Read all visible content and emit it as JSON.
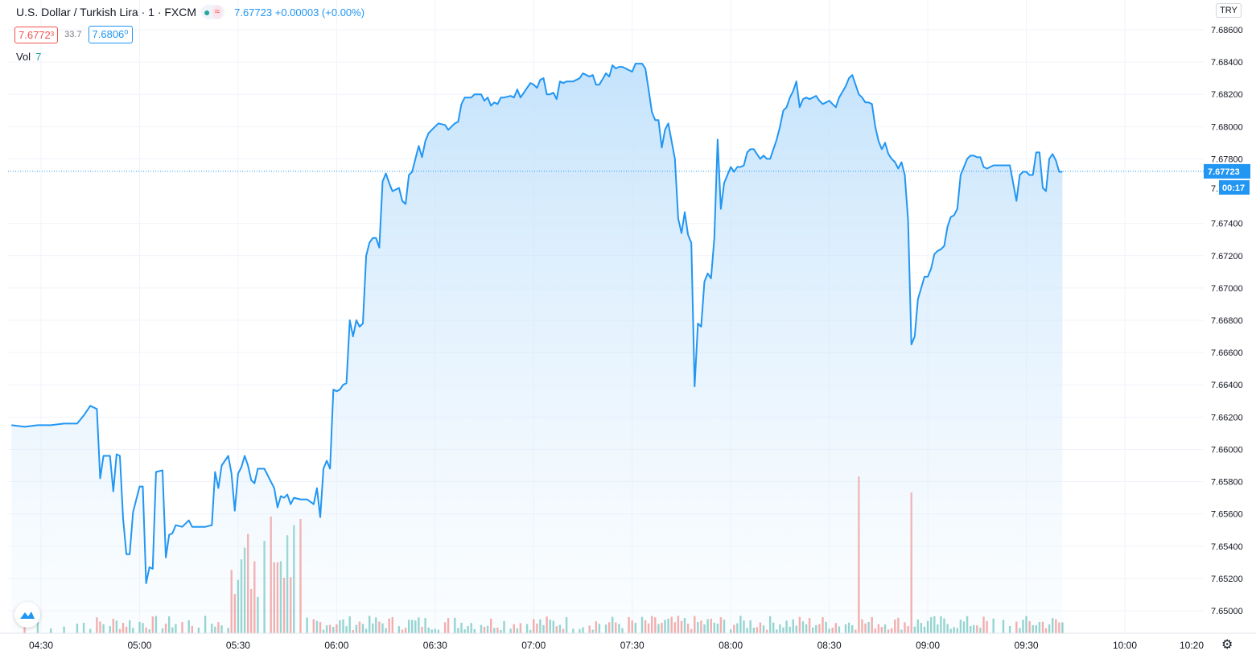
{
  "legend": {
    "title": "U.S. Dollar / Turkish Lira · 1 · FXCM",
    "last": "7.67723",
    "change": "+0.00003 (+0.00%)"
  },
  "quotes": {
    "bid": "7.6772³",
    "spread": "33.7",
    "ask": "7.6806⁰"
  },
  "volume": {
    "label": "Vol",
    "value": "7"
  },
  "currency_button": "TRY",
  "price_axis": {
    "ticks": [
      "7.68600",
      "7.68400",
      "7.68200",
      "7.68000",
      "7.67800",
      "7.67400",
      "7.67200",
      "7.67000",
      "7.66800",
      "7.66600",
      "7.66400",
      "7.66200",
      "7.66000",
      "7.65800",
      "7.65600",
      "7.65400",
      "7.65200",
      "7.65000"
    ],
    "last_label": "7.67723",
    "countdown": "00:17",
    "partial_label": "7."
  },
  "time_axis": {
    "ticks": [
      "04:30",
      "05:00",
      "05:30",
      "06:00",
      "06:30",
      "07:00",
      "07:30",
      "08:00",
      "08:30",
      "09:00",
      "09:30",
      "10:00",
      "10:20"
    ]
  },
  "colors": {
    "line": "#2196f3",
    "area_top": "#bbdefb",
    "vol_up": "#26a69a",
    "vol_down": "#ef5350",
    "grid": "#f0f3fa"
  },
  "chart_data": {
    "type": "area",
    "symbol": "USDTRY",
    "y_unit": "TRY",
    "ylim": [
      7.6485,
      7.687
    ],
    "x_range": [
      "04:21",
      "10:20"
    ],
    "series": [
      {
        "points": [
          [
            "04:21",
            7.6615
          ],
          [
            "04:25",
            7.6614
          ],
          [
            "04:29",
            7.6615
          ],
          [
            "04:33",
            7.6615
          ],
          [
            "04:37",
            7.6616
          ],
          [
            "04:41",
            7.6616
          ],
          [
            "04:43",
            7.6621
          ],
          [
            "04:45",
            7.6627
          ],
          [
            "04:47",
            7.6625
          ],
          [
            "04:48",
            7.6582
          ],
          [
            "04:49",
            7.6596
          ],
          [
            "04:51",
            7.6596
          ],
          [
            "04:52",
            7.6574
          ],
          [
            "04:53",
            7.6597
          ],
          [
            "04:54",
            7.6596
          ],
          [
            "04:55",
            7.6557
          ],
          [
            "04:56",
            7.6535
          ],
          [
            "04:57",
            7.6535
          ],
          [
            "04:58",
            7.6561
          ],
          [
            "05:00",
            7.6577
          ],
          [
            "05:01",
            7.6577
          ],
          [
            "05:02",
            7.6517
          ],
          [
            "05:03",
            7.6527
          ],
          [
            "05:04",
            7.6526
          ],
          [
            "05:05",
            7.6586
          ],
          [
            "05:07",
            7.6587
          ],
          [
            "05:08",
            7.6533
          ],
          [
            "05:09",
            7.6547
          ],
          [
            "05:10",
            7.6548
          ],
          [
            "05:11",
            7.6553
          ],
          [
            "05:13",
            7.6552
          ],
          [
            "05:15",
            7.6556
          ],
          [
            "05:16",
            7.6552
          ],
          [
            "05:18",
            7.6552
          ],
          [
            "05:20",
            7.6552
          ],
          [
            "05:22",
            7.6553
          ],
          [
            "05:23",
            7.6586
          ],
          [
            "05:24",
            7.6576
          ],
          [
            "05:25",
            7.659
          ],
          [
            "05:27",
            7.6596
          ],
          [
            "05:28",
            7.6585
          ],
          [
            "05:29",
            7.6562
          ],
          [
            "05:30",
            7.6585
          ],
          [
            "05:31",
            7.6589
          ],
          [
            "05:32",
            7.6596
          ],
          [
            "05:33",
            7.659
          ],
          [
            "05:34",
            7.6581
          ],
          [
            "05:35",
            7.6579
          ],
          [
            "05:36",
            7.6588
          ],
          [
            "05:38",
            7.6588
          ],
          [
            "05:40",
            7.658
          ],
          [
            "05:41",
            7.6576
          ],
          [
            "05:42",
            7.6564
          ],
          [
            "05:43",
            7.6571
          ],
          [
            "05:44",
            7.657
          ],
          [
            "05:45",
            7.6572
          ],
          [
            "05:46",
            7.6566
          ],
          [
            "05:47",
            7.657
          ],
          [
            "05:49",
            7.6569
          ],
          [
            "05:51",
            7.6569
          ],
          [
            "05:53",
            7.6566
          ],
          [
            "05:54",
            7.6576
          ],
          [
            "05:55",
            7.6558
          ],
          [
            "05:56",
            7.6588
          ],
          [
            "05:57",
            7.6593
          ],
          [
            "05:58",
            7.6588
          ],
          [
            "05:59",
            7.6637
          ],
          [
            "06:00",
            7.6636
          ],
          [
            "06:01",
            7.6637
          ],
          [
            "06:02",
            7.664
          ],
          [
            "06:03",
            7.6641
          ],
          [
            "06:04",
            7.668
          ],
          [
            "06:05",
            7.667
          ],
          [
            "06:06",
            7.668
          ],
          [
            "06:07",
            7.6676
          ],
          [
            "06:08",
            7.6678
          ],
          [
            "06:09",
            7.672
          ],
          [
            "06:10",
            7.6728
          ],
          [
            "06:11",
            7.6731
          ],
          [
            "06:12",
            7.6731
          ],
          [
            "06:13",
            7.6725
          ],
          [
            "06:14",
            7.6766
          ],
          [
            "06:15",
            7.6771
          ],
          [
            "06:16",
            7.6765
          ],
          [
            "06:17",
            7.676
          ],
          [
            "06:19",
            7.6762
          ],
          [
            "06:20",
            7.6754
          ],
          [
            "06:21",
            7.6752
          ],
          [
            "06:22",
            7.677
          ],
          [
            "06:23",
            7.6772
          ],
          [
            "06:24",
            7.678
          ],
          [
            "06:25",
            7.6788
          ],
          [
            "06:26",
            7.6781
          ],
          [
            "06:27",
            7.6791
          ],
          [
            "06:28",
            7.6796
          ],
          [
            "06:29",
            7.6798
          ],
          [
            "06:30",
            7.68
          ],
          [
            "06:31",
            7.6802
          ],
          [
            "06:33",
            7.6801
          ],
          [
            "06:34",
            7.6798
          ],
          [
            "06:36",
            7.6802
          ],
          [
            "06:37",
            7.6803
          ],
          [
            "06:38",
            7.6814
          ],
          [
            "06:39",
            7.6818
          ],
          [
            "06:40",
            7.6818
          ],
          [
            "06:41",
            7.6818
          ],
          [
            "06:42",
            7.682
          ],
          [
            "06:44",
            7.682
          ],
          [
            "06:45",
            7.6816
          ],
          [
            "06:46",
            7.6818
          ],
          [
            "06:47",
            7.6813
          ],
          [
            "06:48",
            7.6815
          ],
          [
            "06:49",
            7.6814
          ],
          [
            "06:50",
            7.6818
          ],
          [
            "06:51",
            7.6818
          ],
          [
            "06:53",
            7.6819
          ],
          [
            "06:54",
            7.6818
          ],
          [
            "06:55",
            7.6823
          ],
          [
            "06:56",
            7.6818
          ],
          [
            "06:58",
            7.6824
          ],
          [
            "06:59",
            7.6827
          ],
          [
            "07:00",
            7.6826
          ],
          [
            "07:01",
            7.6824
          ],
          [
            "07:02",
            7.6829
          ],
          [
            "07:03",
            7.683
          ],
          [
            "07:04",
            7.682
          ],
          [
            "07:05",
            7.682
          ],
          [
            "07:06",
            7.6821
          ],
          [
            "07:07",
            7.6817
          ],
          [
            "07:08",
            7.6828
          ],
          [
            "07:09",
            7.6827
          ],
          [
            "07:10",
            7.6828
          ],
          [
            "07:12",
            7.6828
          ],
          [
            "07:14",
            7.683
          ],
          [
            "07:15",
            7.6833
          ],
          [
            "07:17",
            7.6831
          ],
          [
            "07:18",
            7.6832
          ],
          [
            "07:19",
            7.6826
          ],
          [
            "07:20",
            7.6826
          ],
          [
            "07:22",
            7.6833
          ],
          [
            "07:23",
            7.6831
          ],
          [
            "07:24",
            7.6838
          ],
          [
            "07:25",
            7.6836
          ],
          [
            "07:26",
            7.6837
          ],
          [
            "07:27",
            7.6837
          ],
          [
            "07:29",
            7.6835
          ],
          [
            "07:30",
            7.6834
          ],
          [
            "07:31",
            7.6839
          ],
          [
            "07:33",
            7.6839
          ],
          [
            "07:34",
            7.6836
          ],
          [
            "07:35",
            7.6823
          ],
          [
            "07:36",
            7.6809
          ],
          [
            "07:37",
            7.6804
          ],
          [
            "07:38",
            7.6804
          ],
          [
            "07:39",
            7.6787
          ],
          [
            "07:40",
            7.6798
          ],
          [
            "07:41",
            7.6802
          ],
          [
            "07:42",
            7.6791
          ],
          [
            "07:43",
            7.678
          ],
          [
            "07:44",
            7.6743
          ],
          [
            "07:45",
            7.6734
          ],
          [
            "07:46",
            7.6747
          ],
          [
            "07:47",
            7.6733
          ],
          [
            "07:48",
            7.6728
          ],
          [
            "07:49",
            7.6639
          ],
          [
            "07:50",
            7.6678
          ],
          [
            "07:51",
            7.6676
          ],
          [
            "07:52",
            7.6704
          ],
          [
            "07:53",
            7.6709
          ],
          [
            "07:54",
            7.6706
          ],
          [
            "07:55",
            7.6731
          ],
          [
            "07:56",
            7.6792
          ],
          [
            "07:57",
            7.6749
          ],
          [
            "07:58",
            7.6765
          ],
          [
            "08:00",
            7.6775
          ],
          [
            "08:01",
            7.6772
          ],
          [
            "08:02",
            7.6775
          ],
          [
            "08:03",
            7.6775
          ],
          [
            "08:04",
            7.6776
          ],
          [
            "08:05",
            7.6784
          ],
          [
            "08:06",
            7.6786
          ],
          [
            "08:07",
            7.6786
          ],
          [
            "08:08",
            7.6783
          ],
          [
            "08:09",
            7.678
          ],
          [
            "08:10",
            7.6782
          ],
          [
            "08:11",
            7.678
          ],
          [
            "08:12",
            7.678
          ],
          [
            "08:13",
            7.6786
          ],
          [
            "08:14",
            7.6792
          ],
          [
            "08:15",
            7.68
          ],
          [
            "08:16",
            7.681
          ],
          [
            "08:17",
            7.6812
          ],
          [
            "08:18",
            7.6818
          ],
          [
            "08:19",
            7.6822
          ],
          [
            "08:20",
            7.6828
          ],
          [
            "08:21",
            7.6812
          ],
          [
            "08:22",
            7.6817
          ],
          [
            "08:23",
            7.6818
          ],
          [
            "08:24",
            7.6817
          ],
          [
            "08:25",
            7.6818
          ],
          [
            "08:26",
            7.6819
          ],
          [
            "08:27",
            7.6816
          ],
          [
            "08:28",
            7.6814
          ],
          [
            "08:29",
            7.6815
          ],
          [
            "08:30",
            7.6816
          ],
          [
            "08:31",
            7.6814
          ],
          [
            "08:32",
            7.6812
          ],
          [
            "08:33",
            7.6818
          ],
          [
            "08:35",
            7.6825
          ],
          [
            "08:36",
            7.683
          ],
          [
            "08:37",
            7.6832
          ],
          [
            "08:38",
            7.6826
          ],
          [
            "08:39",
            7.682
          ],
          [
            "08:40",
            7.6818
          ],
          [
            "08:41",
            7.6815
          ],
          [
            "08:42",
            7.6815
          ],
          [
            "08:43",
            7.6814
          ],
          [
            "08:44",
            7.68
          ],
          [
            "08:45",
            7.6791
          ],
          [
            "08:46",
            7.6786
          ],
          [
            "08:47",
            7.679
          ],
          [
            "08:48",
            7.6783
          ],
          [
            "08:49",
            7.678
          ],
          [
            "08:50",
            7.6778
          ],
          [
            "08:51",
            7.6774
          ],
          [
            "08:52",
            7.6778
          ],
          [
            "08:53",
            7.677
          ],
          [
            "08:54",
            7.6742
          ],
          [
            "08:55",
            7.6665
          ],
          [
            "08:56",
            7.667
          ],
          [
            "08:57",
            7.6693
          ],
          [
            "08:58",
            7.67
          ],
          [
            "08:59",
            7.6707
          ],
          [
            "09:00",
            7.6707
          ],
          [
            "09:01",
            7.6712
          ],
          [
            "09:02",
            7.6721
          ],
          [
            "09:03",
            7.6723
          ],
          [
            "09:04",
            7.6724
          ],
          [
            "09:05",
            7.6726
          ],
          [
            "09:06",
            7.6738
          ],
          [
            "09:07",
            7.6744
          ],
          [
            "09:08",
            7.6745
          ],
          [
            "09:09",
            7.6749
          ],
          [
            "09:10",
            7.677
          ],
          [
            "09:11",
            7.6775
          ],
          [
            "09:12",
            7.678
          ],
          [
            "09:13",
            7.6782
          ],
          [
            "09:14",
            7.6782
          ],
          [
            "09:15",
            7.6781
          ],
          [
            "09:16",
            7.6781
          ],
          [
            "09:17",
            7.6775
          ],
          [
            "09:18",
            7.6774
          ],
          [
            "09:20",
            7.6776
          ],
          [
            "09:23",
            7.6776
          ],
          [
            "09:25",
            7.6776
          ],
          [
            "09:27",
            7.6754
          ],
          [
            "09:28",
            7.677
          ],
          [
            "09:29",
            7.6772
          ],
          [
            "09:30",
            7.6772
          ],
          [
            "09:31",
            7.677
          ],
          [
            "09:32",
            7.677
          ],
          [
            "09:33",
            7.6784
          ],
          [
            "09:34",
            7.6784
          ],
          [
            "09:35",
            7.6762
          ],
          [
            "09:36",
            7.676
          ],
          [
            "09:37",
            7.678
          ],
          [
            "09:38",
            7.6783
          ],
          [
            "09:39",
            7.6779
          ],
          [
            "09:40",
            7.6772
          ],
          [
            "09:41",
            7.6772
          ]
        ]
      }
    ],
    "volume": {
      "label": "Vol",
      "ylim": [
        0,
        50
      ]
    }
  }
}
